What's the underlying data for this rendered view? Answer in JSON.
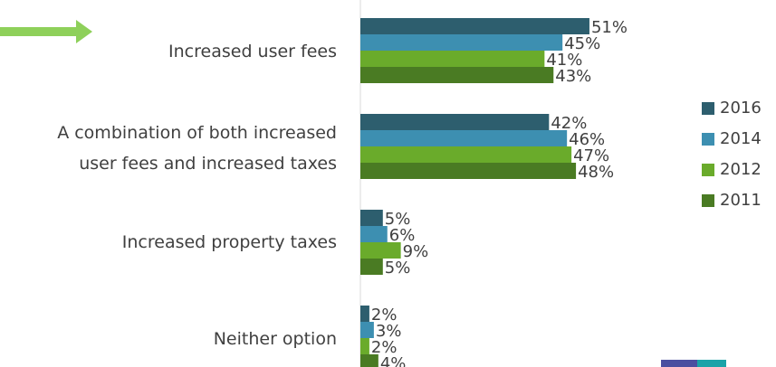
{
  "chart_data": {
    "type": "bar",
    "orientation": "horizontal",
    "categories": [
      "Increased user fees",
      "A combination of both increased\nuser fees and increased taxes",
      "Increased property taxes",
      "Neither option"
    ],
    "series": [
      {
        "name": "2016",
        "color": "#2d5e6e",
        "values": [
          51,
          42,
          5,
          2
        ],
        "value_labels": [
          "51%",
          "42%",
          "5%",
          "2%"
        ]
      },
      {
        "name": "2014",
        "color": "#3d8fb1",
        "values": [
          45,
          46,
          6,
          3
        ],
        "value_labels": [
          "45%",
          "46%",
          "6%",
          "3%"
        ]
      },
      {
        "name": "2012",
        "color": "#6aab2b",
        "values": [
          41,
          47,
          9,
          2
        ],
        "value_labels": [
          "41%",
          "47%",
          "9%",
          "2%"
        ]
      },
      {
        "name": "2011",
        "color": "#4a7b23",
        "values": [
          43,
          48,
          5,
          4
        ],
        "value_labels": [
          "43%",
          "48%",
          "5%",
          "4%"
        ]
      }
    ],
    "xlim": [
      0,
      100
    ],
    "legend": "right"
  }
}
